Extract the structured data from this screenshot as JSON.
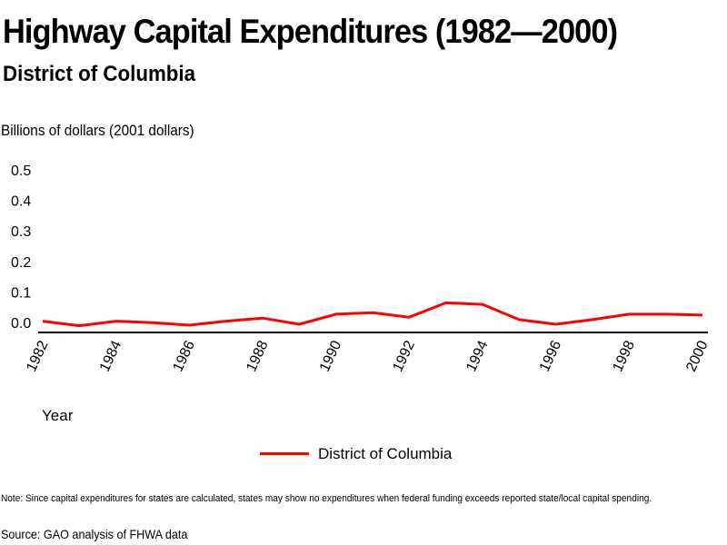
{
  "chart_data": {
    "type": "line",
    "title": "Highway Capital Expenditures (1982—2000)",
    "subtitle": "District of Columbia",
    "ylabel": "Billions of dollars (2001 dollars)",
    "xlabel": "Year",
    "ylim": [
      0,
      0.5
    ],
    "xlim": [
      1982,
      2000
    ],
    "yticks": [
      "0.0",
      "0.1",
      "0.2",
      "0.3",
      "0.4",
      "0.5"
    ],
    "ytick_values": [
      0,
      0.1,
      0.2,
      0.3,
      0.4,
      0.5
    ],
    "xticks": [
      "1982",
      "1984",
      "1986",
      "1988",
      "1990",
      "1992",
      "1994",
      "1996",
      "1998",
      "2000"
    ],
    "xtick_values": [
      1982,
      1984,
      1986,
      1988,
      1990,
      1992,
      1994,
      1996,
      1998,
      2000
    ],
    "grid": false,
    "legend_position": "bottom-center",
    "x": [
      1982,
      1983,
      1984,
      1985,
      1986,
      1987,
      1988,
      1989,
      1990,
      1991,
      1992,
      1993,
      1994,
      1995,
      1996,
      1997,
      1998,
      1999,
      2000
    ],
    "series": [
      {
        "name": "District of Columbia",
        "color": "#ff0000",
        "values": [
          0.025,
          0.01,
          0.025,
          0.02,
          0.012,
          0.025,
          0.035,
          0.015,
          0.048,
          0.053,
          0.038,
          0.085,
          0.08,
          0.03,
          0.015,
          0.03,
          0.048,
          0.048,
          0.045
        ]
      }
    ],
    "note": "Note: Since capital expenditures for states are calculated, states may show no expenditures when federal funding exceeds reported state/local capital spending.",
    "source": "Source: GAO analysis of FHWA data"
  }
}
